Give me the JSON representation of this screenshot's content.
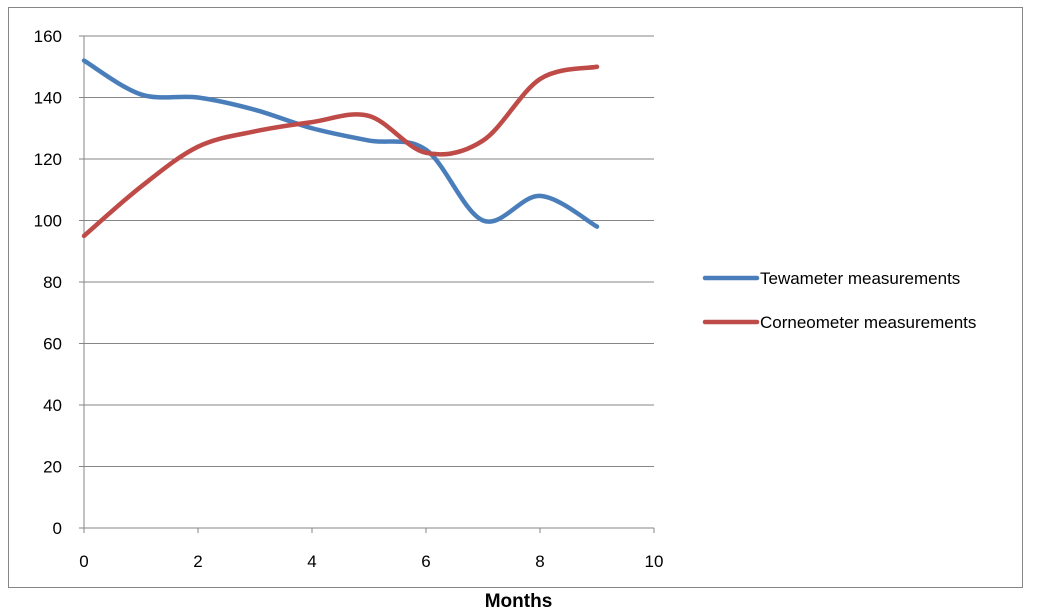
{
  "chart_data": {
    "type": "line",
    "title": "",
    "xlabel": "Months",
    "ylabel": "",
    "xlim": [
      0,
      10
    ],
    "ylim": [
      0,
      160
    ],
    "x_ticks": [
      0,
      2,
      4,
      6,
      8,
      10
    ],
    "y_ticks": [
      0,
      20,
      40,
      60,
      80,
      100,
      120,
      140,
      160
    ],
    "grid": "horizontal",
    "legend_position": "right",
    "smooth": true,
    "series": [
      {
        "name": "Tewameter measurements",
        "color": "#4a7ebb",
        "x": [
          0,
          1,
          2,
          3,
          4,
          5,
          6,
          7,
          8,
          9
        ],
        "y": [
          152,
          141,
          140,
          136,
          130,
          126,
          123,
          100,
          108,
          98
        ]
      },
      {
        "name": "Corneometer measurements",
        "color": "#be4b48",
        "x": [
          0,
          1,
          2,
          3,
          4,
          5,
          6,
          7,
          8,
          9
        ],
        "y": [
          95,
          111,
          124,
          129,
          132,
          134,
          122,
          126,
          146,
          150
        ]
      }
    ]
  }
}
